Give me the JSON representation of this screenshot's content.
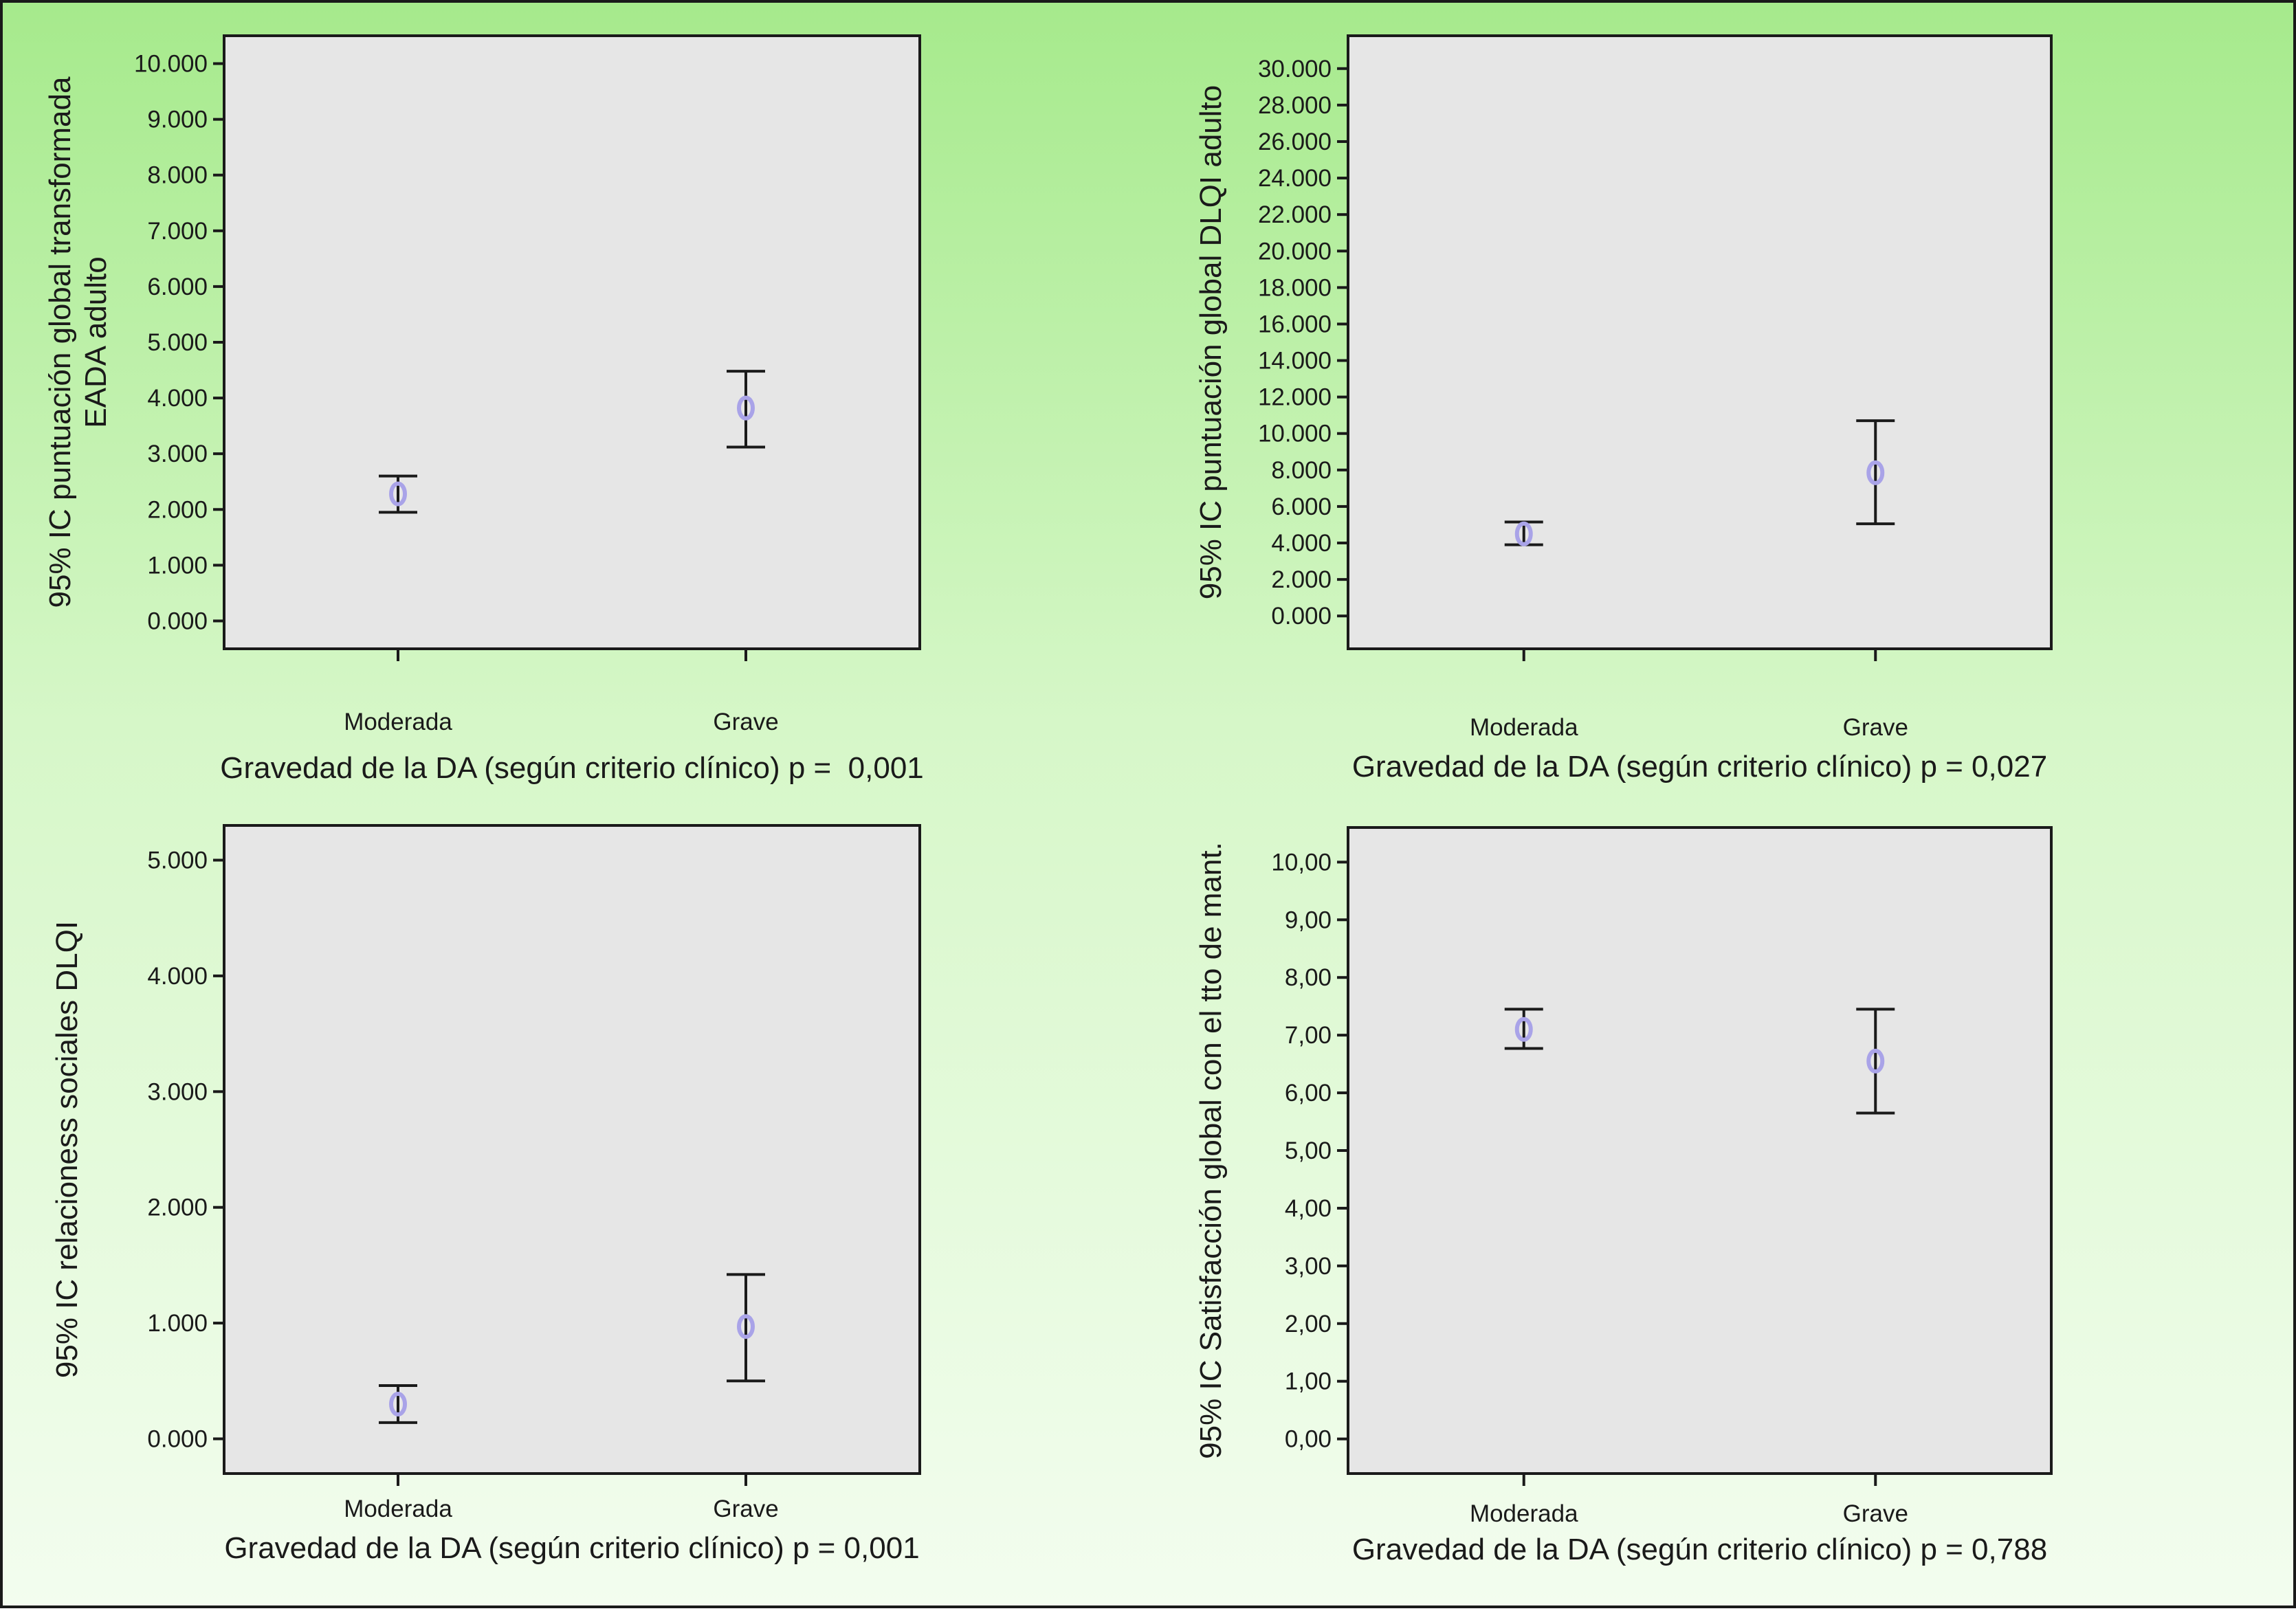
{
  "chart_data": [
    {
      "type": "errorbar",
      "categories": [
        "Moderada",
        "Grave"
      ],
      "ylabel": "95% IC puntuación global transformada EADA adulto",
      "ylabel_lines": [
        "95% IC puntuación global transformada",
        "EADA adulto"
      ],
      "xlabel": "Gravedad de la DA (según criterio clínico) p =  0,001",
      "ylim": [
        -0.5,
        10.5
      ],
      "yticks": [
        0,
        1,
        2,
        3,
        4,
        5,
        6,
        7,
        8,
        9,
        10
      ],
      "ytick_labels": [
        "0.000",
        "1.000",
        "2.000",
        "3.000",
        "4.000",
        "5.000",
        "6.000",
        "7.000",
        "8.000",
        "9.000",
        "10.000"
      ],
      "mean": [
        2.28,
        3.82
      ],
      "ci_low": [
        1.95,
        3.12
      ],
      "ci_high": [
        2.6,
        4.48
      ]
    },
    {
      "type": "errorbar",
      "categories": [
        "Moderada",
        "Grave"
      ],
      "ylabel": "95% IC puntuación global DLQI adulto",
      "ylabel_lines": [
        "95% IC puntuación global DLQI adulto"
      ],
      "xlabel": "Gravedad de la DA (según criterio clínico) p = 0,027",
      "ylim": [
        -1.8,
        31.8
      ],
      "yticks": [
        0,
        2,
        4,
        6,
        8,
        10,
        12,
        14,
        16,
        18,
        20,
        22,
        24,
        26,
        28,
        30
      ],
      "ytick_labels": [
        "0.000",
        "2.000",
        "4.000",
        "6.000",
        "8.000",
        "10.000",
        "12.000",
        "14.000",
        "16.000",
        "18.000",
        "20.000",
        "22.000",
        "24.000",
        "26.000",
        "28.000",
        "30.000"
      ],
      "mean": [
        4.5,
        7.85
      ],
      "ci_low": [
        3.9,
        5.05
      ],
      "ci_high": [
        5.15,
        10.7
      ]
    },
    {
      "type": "errorbar",
      "categories": [
        "Moderada",
        "Grave"
      ],
      "ylabel": "95% IC relacioness sociales  DLQI",
      "ylabel_lines": [
        "95% IC relacioness sociales  DLQI"
      ],
      "xlabel": "Gravedad de la DA (según criterio clínico) p = 0,001",
      "ylim": [
        -0.3,
        5.3
      ],
      "yticks": [
        0,
        1,
        2,
        3,
        4,
        5
      ],
      "ytick_labels": [
        "0.000",
        "1.000",
        "2.000",
        "3.000",
        "4.000",
        "5.000"
      ],
      "mean": [
        0.3,
        0.97
      ],
      "ci_low": [
        0.14,
        0.5
      ],
      "ci_high": [
        0.46,
        1.42
      ]
    },
    {
      "type": "errorbar",
      "categories": [
        "Moderada",
        "Grave"
      ],
      "ylabel": "95% IC Satisfacción global con el tto de mant.",
      "ylabel_lines": [
        "95% IC Satisfacción global con el tto de mant."
      ],
      "xlabel": "Gravedad de la DA (según criterio clínico) p = 0,788",
      "ylim": [
        -0.6,
        10.6
      ],
      "yticks": [
        0,
        1,
        2,
        3,
        4,
        5,
        6,
        7,
        8,
        9,
        10
      ],
      "ytick_labels": [
        "0,00",
        "1,00",
        "2,00",
        "3,00",
        "4,00",
        "5,00",
        "6,00",
        "7,00",
        "8,00",
        "9,00",
        "10,00"
      ],
      "mean": [
        7.1,
        6.55
      ],
      "ci_low": [
        6.77,
        5.65
      ],
      "ci_high": [
        7.45,
        7.45
      ]
    }
  ],
  "colors": {
    "marker": "#a9a3e8",
    "lines": "#1a1a1a",
    "plot_bg": "#e6e6e6"
  }
}
